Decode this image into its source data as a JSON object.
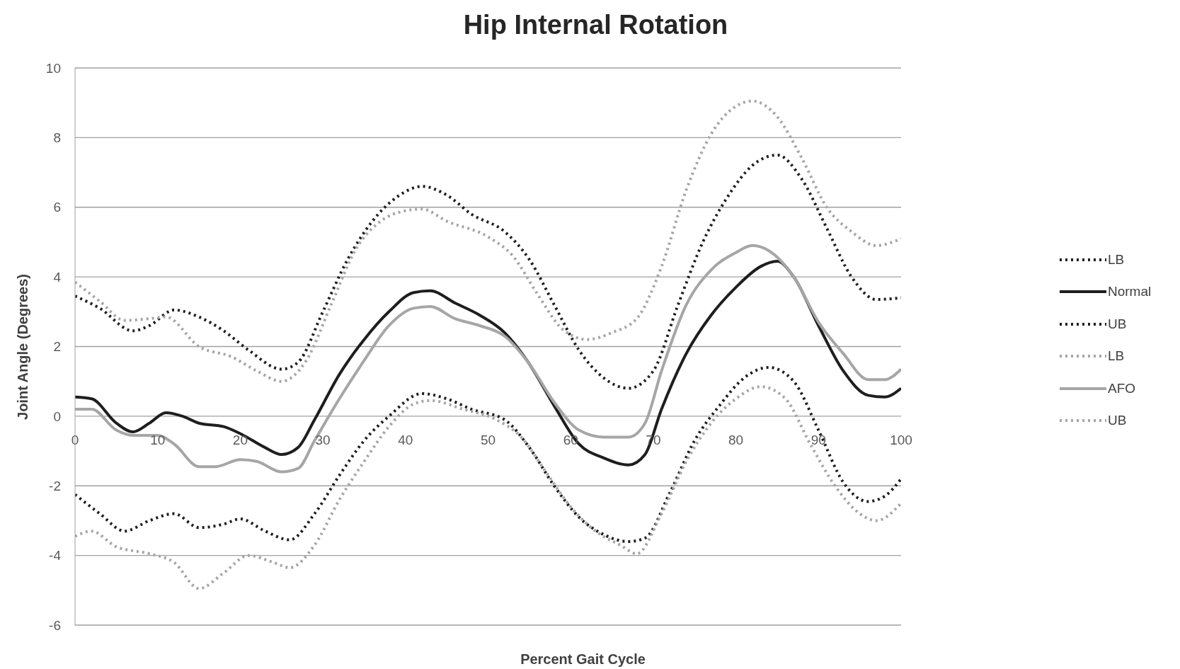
{
  "chart_data": {
    "type": "line",
    "title": "Hip Internal Rotation",
    "xlabel": "Percent Gait Cycle",
    "ylabel": "Joint Angle (Degrees)",
    "xlim": [
      0,
      100
    ],
    "xticks": [
      0,
      10,
      20,
      30,
      40,
      50,
      60,
      70,
      80,
      90,
      100
    ],
    "ylim": [
      -6,
      10
    ],
    "yticks": [
      -6,
      -4,
      -2,
      0,
      2,
      4,
      6,
      8,
      10
    ],
    "grid": "y",
    "legend": "right",
    "series": [
      {
        "name": "LB",
        "color": "#1e1e1e",
        "line_style": "dotted",
        "x": [
          0,
          3,
          6,
          9,
          12,
          15,
          18,
          20,
          23,
          26,
          29,
          32,
          35,
          38,
          42,
          45,
          48,
          52,
          55,
          58,
          61,
          64,
          67,
          69,
          72,
          75,
          78,
          81,
          84,
          87,
          90,
          93,
          96,
          98,
          100
        ],
        "values": [
          -2.25,
          -2.8,
          -3.3,
          -3.0,
          -2.8,
          -3.2,
          -3.1,
          -2.95,
          -3.3,
          -3.55,
          -2.8,
          -1.7,
          -0.7,
          0.0,
          0.65,
          0.5,
          0.2,
          -0.1,
          -0.9,
          -2.0,
          -2.9,
          -3.4,
          -3.6,
          -3.5,
          -2.2,
          -0.7,
          0.3,
          1.1,
          1.4,
          1.0,
          -0.4,
          -1.9,
          -2.45,
          -2.3,
          -1.8
        ]
      },
      {
        "name": "Normal",
        "color": "#1e1e1e",
        "line_style": "solid",
        "x": [
          0,
          2,
          5,
          7,
          9,
          11,
          13,
          15,
          18,
          20,
          23,
          25,
          27,
          29,
          32,
          35,
          38,
          41,
          43,
          46,
          49,
          52,
          55,
          58,
          61,
          64,
          67,
          69,
          71,
          74,
          77,
          80,
          83,
          85,
          87,
          90,
          93,
          96,
          98,
          100
        ],
        "values": [
          0.55,
          0.5,
          -0.2,
          -0.45,
          -0.2,
          0.1,
          0.0,
          -0.2,
          -0.3,
          -0.5,
          -0.9,
          -1.1,
          -0.9,
          -0.1,
          1.2,
          2.2,
          3.0,
          3.55,
          3.6,
          3.25,
          2.9,
          2.4,
          1.5,
          0.3,
          -0.8,
          -1.2,
          -1.4,
          -1.1,
          0.2,
          1.8,
          2.9,
          3.7,
          4.3,
          4.45,
          4.0,
          2.6,
          1.3,
          0.6,
          0.55,
          0.8
        ]
      },
      {
        "name": "UB",
        "color": "#1e1e1e",
        "line_style": "dotted",
        "x": [
          0,
          3,
          7,
          9,
          12,
          15,
          18,
          21,
          25,
          27,
          30,
          33,
          36,
          39,
          42,
          45,
          48,
          52,
          55,
          58,
          61,
          64,
          67,
          70,
          73,
          76,
          79,
          82,
          85,
          88,
          91,
          94,
          97,
          100
        ],
        "values": [
          3.45,
          3.1,
          2.45,
          2.6,
          3.05,
          2.85,
          2.45,
          1.9,
          1.35,
          1.55,
          3.0,
          4.5,
          5.6,
          6.3,
          6.6,
          6.35,
          5.8,
          5.3,
          4.5,
          3.2,
          1.9,
          1.1,
          0.8,
          1.3,
          3.2,
          5.0,
          6.3,
          7.2,
          7.5,
          6.8,
          5.4,
          4.0,
          3.35,
          3.4
        ]
      },
      {
        "name": "LB",
        "color": "#a6a6a6",
        "line_style": "dotted",
        "x": [
          0,
          2,
          5,
          9,
          12,
          15,
          18,
          21,
          24,
          26,
          29,
          32,
          35,
          38,
          41,
          43,
          47,
          51,
          54,
          57,
          60,
          63,
          66,
          68,
          71,
          74,
          77,
          80,
          83,
          86,
          89,
          92,
          95,
          97,
          100
        ],
        "values": [
          -3.45,
          -3.3,
          -3.75,
          -3.95,
          -4.2,
          -4.95,
          -4.5,
          -4.0,
          -4.2,
          -4.35,
          -3.7,
          -2.4,
          -1.3,
          -0.3,
          0.35,
          0.45,
          0.2,
          -0.1,
          -0.6,
          -1.6,
          -2.6,
          -3.3,
          -3.7,
          -3.95,
          -2.8,
          -1.3,
          -0.2,
          0.5,
          0.85,
          0.5,
          -0.8,
          -2.0,
          -2.8,
          -3.0,
          -2.5
        ]
      },
      {
        "name": "AFO",
        "color": "#a6a6a6",
        "line_style": "solid",
        "x": [
          0,
          2,
          5,
          7,
          10,
          12,
          15,
          17,
          20,
          22,
          25,
          27,
          29,
          32,
          35,
          38,
          41,
          43,
          46,
          49,
          52,
          55,
          58,
          61,
          64,
          67,
          69,
          71,
          74,
          77,
          80,
          82,
          84,
          87,
          90,
          93,
          96,
          98,
          100
        ],
        "values": [
          0.2,
          0.2,
          -0.4,
          -0.55,
          -0.55,
          -0.8,
          -1.45,
          -1.45,
          -1.25,
          -1.3,
          -1.6,
          -1.5,
          -0.7,
          0.5,
          1.6,
          2.6,
          3.1,
          3.15,
          2.8,
          2.6,
          2.3,
          1.5,
          0.4,
          -0.4,
          -0.6,
          -0.6,
          -0.2,
          1.3,
          3.2,
          4.2,
          4.7,
          4.9,
          4.75,
          4.0,
          2.7,
          1.8,
          1.05,
          1.05,
          1.35
        ]
      },
      {
        "name": "UB",
        "color": "#a6a6a6",
        "line_style": "dotted",
        "x": [
          0,
          3,
          6,
          9,
          11,
          15,
          19,
          22,
          25,
          28,
          31,
          34,
          37,
          40,
          42,
          45,
          50,
          53,
          56,
          59,
          62,
          65,
          68,
          71,
          74,
          77,
          80,
          82,
          85,
          88,
          91,
          94,
          97,
          100
        ],
        "values": [
          3.85,
          3.3,
          2.75,
          2.8,
          2.85,
          2.0,
          1.7,
          1.3,
          1.0,
          1.6,
          3.2,
          4.8,
          5.6,
          5.9,
          5.95,
          5.6,
          5.15,
          4.6,
          3.5,
          2.5,
          2.2,
          2.4,
          2.8,
          4.3,
          6.5,
          8.1,
          8.9,
          9.05,
          8.6,
          7.4,
          6.0,
          5.3,
          4.9,
          5.1
        ]
      }
    ]
  }
}
